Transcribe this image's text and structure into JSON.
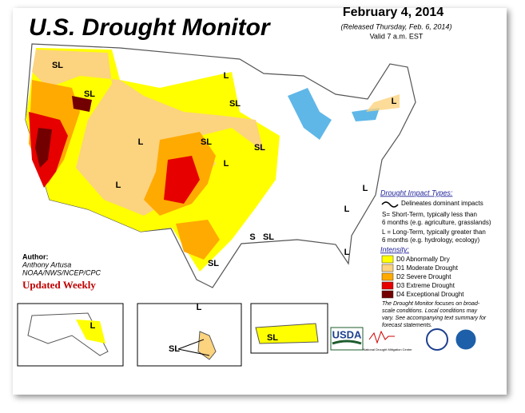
{
  "header": {
    "title": "U.S. Drought Monitor",
    "date": "February 4, 2014",
    "released": "(Released Thursday, Feb. 6, 2014)",
    "valid": "Valid 7 a.m. EST"
  },
  "impact": {
    "heading": "Drought Impact Types:",
    "delineates": "Delineates dominant impacts",
    "short": [
      "S= Short-Term, typically less than",
      "6 months (e.g. agriculture, grasslands)"
    ],
    "long": [
      "L = Long-Term, typically greater than",
      "6 months (e.g. hydrology, ecology)"
    ]
  },
  "intensity": {
    "heading": "Intensity:",
    "levels": [
      {
        "label": "D0 Abnormally Dry",
        "color": "#ffff00"
      },
      {
        "label": "D1 Moderate Drought",
        "color": "#fcd37f"
      },
      {
        "label": "D2 Severe Drought",
        "color": "#ffaa00"
      },
      {
        "label": "D3 Extreme Drought",
        "color": "#e60000"
      },
      {
        "label": "D4 Exceptional Drought",
        "color": "#730000"
      }
    ]
  },
  "note": [
    "The Drought Monitor focuses on broad-",
    "scale conditions. Local conditions may",
    "vary. See accompanying text summary for",
    "forecast statements."
  ],
  "author": {
    "heading": "Author:",
    "name": "Anthony Artusa",
    "org": "NOAA/NWS/NCEP/CPC"
  },
  "updated": "Updated Weekly",
  "logos": {
    "usda": "USDA",
    "ndmc": "National Drought Mitigation Center"
  },
  "map": {
    "labels": [
      "SL",
      "SL",
      "L",
      "SL",
      "SL",
      "L",
      "SL",
      "L",
      "L",
      "S",
      "SL",
      "SL",
      "L",
      "L",
      "L",
      "L",
      "L",
      "L",
      "SL",
      "SL"
    ]
  }
}
